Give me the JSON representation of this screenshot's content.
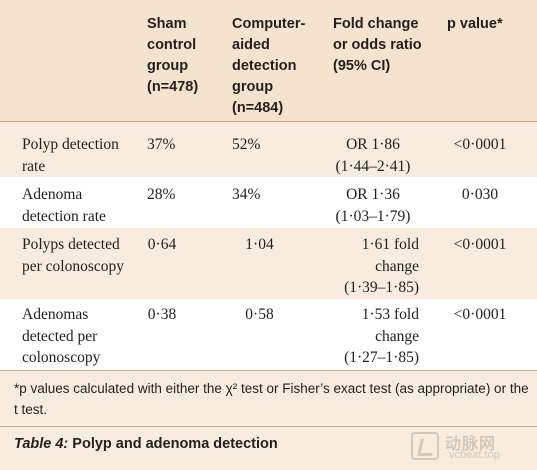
{
  "table": {
    "headers": [
      "Sham\ncontrol\ngroup\n(n=478)",
      "Computer-\naided\ndetection\ngroup\n(n=484)",
      "Fold change\nor odds ratio\n(95% CI)",
      "p value*"
    ],
    "rows": [
      {
        "label": "Polyp detection\nrate",
        "sham": "37%",
        "cad": "52%",
        "effect": "OR 1·86\n(1·44–2·41)",
        "p": "<0·0001"
      },
      {
        "label": "Adenoma\ndetection rate",
        "sham": "28%",
        "cad": "34%",
        "effect": "OR 1·36\n(1·03–1·79)",
        "p": "0·030"
      },
      {
        "label": "Polyps detected\nper colonoscopy",
        "sham": "0·64",
        "cad": "1·04",
        "effect": "1·61 fold\nchange\n(1·39–1·85)",
        "p": "<0·0001"
      },
      {
        "label": "Adenomas\ndetected per\ncolonoscopy",
        "sham": "0·38",
        "cad": "0·58",
        "effect": "1·53 fold\nchange\n(1·27–1·85)",
        "p": "<0·0001"
      }
    ],
    "footnote": "*p values calculated with either the χ² test or Fisher’s exact test (as appropriate) or the t test.",
    "caption_label": "Table 4:",
    "caption_text": " Polyp and adenoma detection"
  },
  "watermark": {
    "line1": "动脉网",
    "line2": "vcbeat.top"
  }
}
